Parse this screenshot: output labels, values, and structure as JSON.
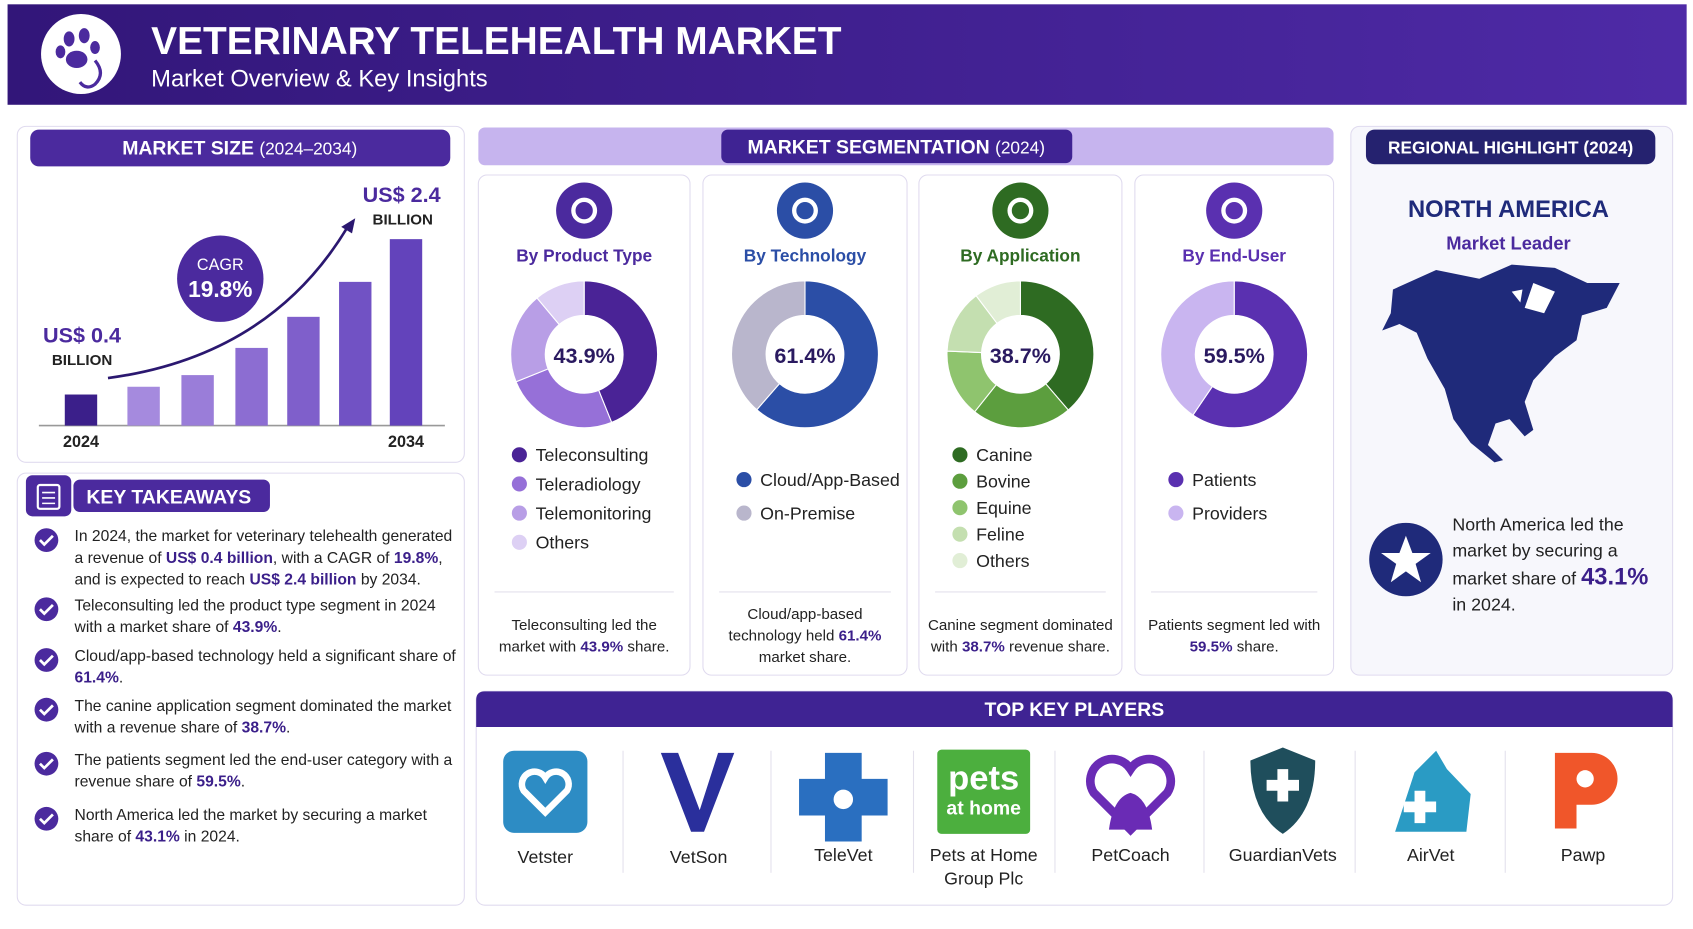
{
  "header": {
    "title": "VETERINARY TELEHEALTH MARKET",
    "subtitle": "Market Overview & Key Insights"
  },
  "market_size": {
    "heading": "MARKET SIZE",
    "period": "(2024–2034)",
    "start_value": "US$ 0.4",
    "start_unit": "BILLION",
    "end_value": "US$ 2.4",
    "end_unit": "BILLION",
    "cagr_label": "CAGR",
    "cagr_value": "19.8%",
    "chart_data": {
      "type": "bar",
      "categories": [
        "2024",
        null,
        null,
        null,
        null,
        null,
        "2034"
      ],
      "values": [
        0.4,
        0.5,
        0.65,
        1.0,
        1.4,
        1.85,
        2.4
      ],
      "colors": [
        "#3b1f8a",
        "#a58ade",
        "#9a7dd9",
        "#8c6dd2",
        "#7f5fcb",
        "#7152c4",
        "#6343bb"
      ],
      "ylim": [
        0,
        2.6
      ]
    }
  },
  "key_takeaways": {
    "heading": "KEY TAKEAWAYS",
    "items": [
      [
        "In 2024, the market for veterinary telehealth generated a revenue of ",
        "US$ 0.4 billion",
        ", with a CAGR of ",
        "19.8%",
        ", and is expected to reach ",
        "US$ 2.4 billion",
        " by 2034."
      ],
      [
        "Teleconsulting led the product type segment in 2024 with a market share of ",
        "43.9%",
        "."
      ],
      [
        "Cloud/app-based technology held a significant share of ",
        "61.4%",
        "."
      ],
      [
        "The canine application segment dominated the market with a revenue share of ",
        "38.7%",
        "."
      ],
      [
        "The patients segment led the end-user category with a revenue share of ",
        "59.5%",
        "."
      ],
      [
        "North America led the market by securing a market share of ",
        "43.1%",
        " in 2024."
      ]
    ]
  },
  "segmentation": {
    "heading": "MARKET SEGMENTATION",
    "period": "(2024)",
    "cards": [
      {
        "title": "By Product Type",
        "chart_data": {
          "type": "donut",
          "center_label": "43.9%",
          "categories": [
            "Teleconsulting",
            "Teleradiology",
            "Telemonitoring",
            "Others"
          ],
          "values": [
            43.9,
            25,
            20,
            11.1
          ],
          "colors": [
            "#4a2396",
            "#9670d8",
            "#b89ee6",
            "#ddd0f4"
          ]
        },
        "note": [
          "Teleconsulting led the market with ",
          "43.9%",
          " share."
        ]
      },
      {
        "title": "By Technology",
        "chart_data": {
          "type": "donut",
          "center_label": "61.4%",
          "categories": [
            "Cloud/App-Based",
            "On-Premise"
          ],
          "values": [
            61.4,
            38.6
          ],
          "colors": [
            "#2b4ea6",
            "#b9b6cc"
          ]
        },
        "note": [
          "Cloud/app-based technology held ",
          "61.4%",
          " market share."
        ]
      },
      {
        "title": "By Application",
        "chart_data": {
          "type": "donut",
          "center_label": "38.7%",
          "categories": [
            "Canine",
            "Bovine",
            "Equine",
            "Feline",
            "Others"
          ],
          "values": [
            38.7,
            22,
            15,
            14,
            10.3
          ],
          "colors": [
            "#2e6b22",
            "#5c9e3e",
            "#8fc46e",
            "#c4dfb0",
            "#e1eed6"
          ]
        },
        "note": [
          "Canine segment dominated with ",
          "38.7%",
          " revenue share."
        ]
      },
      {
        "title": "By End-User",
        "chart_data": {
          "type": "donut",
          "center_label": "59.5%",
          "categories": [
            "Patients",
            "Providers"
          ],
          "values": [
            59.5,
            40.5
          ],
          "colors": [
            "#5a30b0",
            "#c9b5f0"
          ]
        },
        "note": [
          "Patients segment led with ",
          "59.5%",
          " share."
        ]
      }
    ]
  },
  "regional": {
    "heading": "REGIONAL HIGHLIGHT",
    "period": "(2024)",
    "region": "NORTH AMERICA",
    "subtitle": "Market Leader",
    "text": [
      "North America led the market by securing a market share of ",
      "43.1%",
      " in 2024."
    ]
  },
  "players": {
    "heading": "TOP KEY PLAYERS",
    "items": [
      {
        "name": "Vetster"
      },
      {
        "name": "VetSon"
      },
      {
        "name": "TeleVet"
      },
      {
        "name": "Pets at Home Group Plc",
        "logo_text": [
          "pets",
          "at home"
        ]
      },
      {
        "name": "PetCoach"
      },
      {
        "name": "GuardianVets"
      },
      {
        "name": "AirVet"
      },
      {
        "name": "Pawp"
      }
    ]
  }
}
